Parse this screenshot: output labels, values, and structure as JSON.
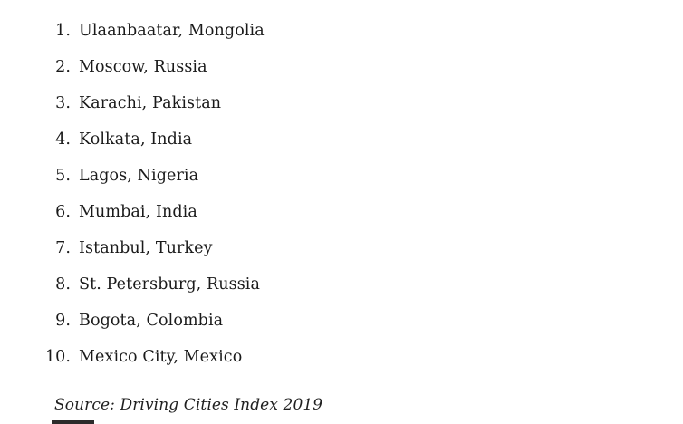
{
  "list": {
    "items": [
      {
        "number": "1.",
        "label": "Ulaanbaatar, Mongolia"
      },
      {
        "number": "2.",
        "label": "Moscow, Russia"
      },
      {
        "number": "3.",
        "label": "Karachi, Pakistan"
      },
      {
        "number": "4.",
        "label": "Kolkata, India"
      },
      {
        "number": "5.",
        "label": "Lagos, Nigeria"
      },
      {
        "number": "6.",
        "label": "Mumbai, India"
      },
      {
        "number": "7.",
        "label": "Istanbul, Turkey"
      },
      {
        "number": "8.",
        "label": "St. Petersburg, Russia"
      },
      {
        "number": "9.",
        "label": "Bogota, Colombia"
      },
      {
        "number": "10.",
        "label": "Mexico City, Mexico"
      }
    ]
  },
  "source": {
    "text": "Source: Driving Cities Index 2019"
  },
  "colors": {
    "background": "#ffffff",
    "text": "#1a1a1a",
    "cropped_bar": "#2b2b2b"
  }
}
